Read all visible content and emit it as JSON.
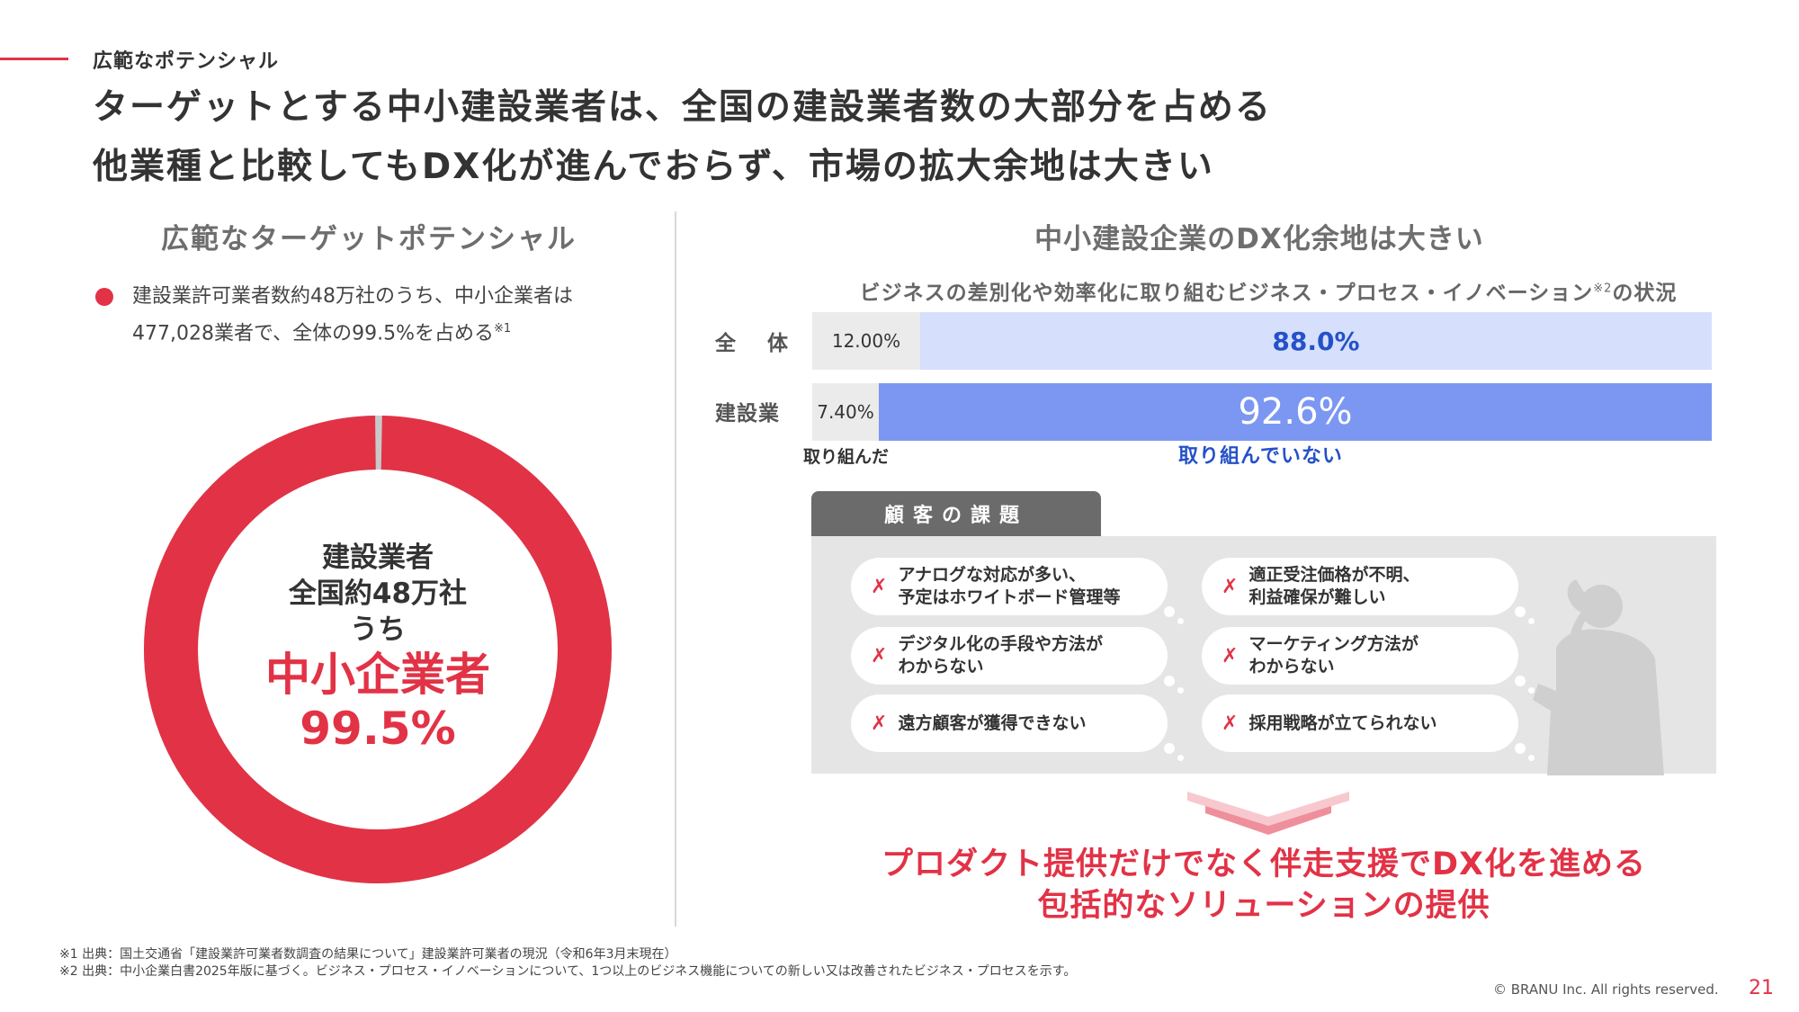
{
  "header": {
    "section_label": "広範なポテンシャル",
    "headline_1": "ターゲットとする中小建設業者は、全国の建設業者数の大部分を占める",
    "headline_2": "他業種と比較してもDX化が進んでおらず、市場の拡大余地は大きい"
  },
  "left": {
    "title": "広範なターゲットポテンシャル",
    "bullet_line_1": "建設業許可業者数約48万社のうち、中小企業者は",
    "bullet_line_2": "477,028業者で、全体の99.5%を占める",
    "bullet_note": "※1",
    "donut": {
      "line_1": "建設業者",
      "line_2": "全国約48万社",
      "line_3": "うち",
      "highlight_1": "中小企業者",
      "highlight_2": "99.5%",
      "share": 99.5,
      "colors": {
        "main": "#e23246",
        "rest": "#c9c9c9"
      }
    }
  },
  "right": {
    "title": "中小建設企業のDX化余地は大きい",
    "chart_subtitle": "ビジネスの差別化や効率化に取り組むビジネス・プロセス・イノベーション",
    "chart_subtitle_note": "※2",
    "chart_subtitle_tail": "の状況",
    "legend_done": "取り組んだ",
    "legend_not_done": "取り組んでいない",
    "issues_title": "顧客の課題",
    "issues": [
      "アナログな対応が多い、\n予定はホワイトボード管理等",
      "適正受注価格が不明、\n利益確保が難しい",
      "デジタル化の手段や方法が\nわからない",
      "マーケティング方法が\nわからない",
      "遠方顧客が獲得できない",
      "採用戦略が立てられない"
    ],
    "issue_mark": "✗",
    "conclusion_1": "プロダクト提供だけでなく伴走支援でDX化を進める",
    "conclusion_2": "包括的なソリューションの提供"
  },
  "chart_data": {
    "type": "bar",
    "stacked": true,
    "orientation": "horizontal",
    "categories": [
      "全　体",
      "建設業"
    ],
    "series": [
      {
        "name": "取り組んだ",
        "values": [
          12.0,
          7.4
        ],
        "labels": [
          "12.00%",
          "7.40%"
        ],
        "color": "#ebebeb"
      },
      {
        "name": "取り組んでいない",
        "values": [
          88.0,
          92.6
        ],
        "labels": [
          "88.0%",
          "92.6%"
        ],
        "colors": [
          "#d6dffc",
          "#7c97f2"
        ]
      }
    ],
    "xlim": [
      0,
      100
    ]
  },
  "footer": {
    "note_1": "※1 出典：国土交通省「建設業許可業者数調査の結果について」建設業許可業者の現況（令和6年3月末現在）",
    "note_2": "※2 出典：中小企業白書2025年版に基づく。ビジネス・プロセス・イノベーションについて、1つ以上のビジネス機能についての新しい又は改善されたビジネス・プロセスを示す。",
    "copyright": "© BRANU Inc. All rights reserved.",
    "page_number": "21"
  }
}
